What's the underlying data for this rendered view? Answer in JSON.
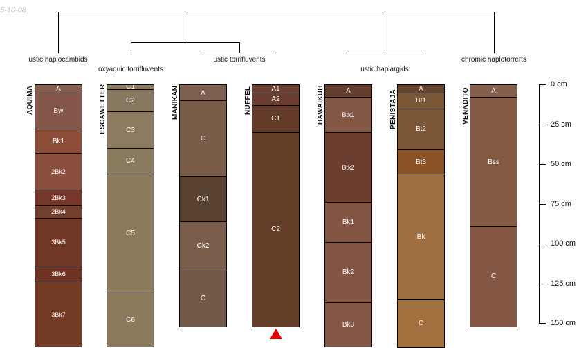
{
  "date_label": "5-10-08",
  "group_labels": [
    {
      "id": "g1",
      "text": "ustic haplocambids"
    },
    {
      "id": "g2",
      "text": "oxyaquic torrifluvents"
    },
    {
      "id": "g3",
      "text": "ustic torrifluvents"
    },
    {
      "id": "g4",
      "text": "ustic haplargids"
    },
    {
      "id": "g5",
      "text": "chromic haplotorrerts"
    }
  ],
  "depth_axis": {
    "unit": "cm",
    "max_depth": 150,
    "ticks": [
      "0 cm",
      "25 cm",
      "50 cm",
      "75 cm",
      "100 cm",
      "125 cm",
      "150 cm"
    ]
  },
  "profiles": [
    {
      "name": "AQUIMA",
      "horizons": [
        {
          "name": "A",
          "top": 0,
          "bottom": 5,
          "color": "#865c4e"
        },
        {
          "name": "Bw",
          "top": 5,
          "bottom": 28,
          "color": "#85574b"
        },
        {
          "name": "Bk1",
          "top": 28,
          "bottom": 43,
          "color": "#8f4e3a"
        },
        {
          "name": "2Bk2",
          "top": 43,
          "bottom": 66,
          "color": "#8b4f3e"
        },
        {
          "name": "2Bk3",
          "top": 66,
          "bottom": 76,
          "color": "#76372a"
        },
        {
          "name": "2Bk4",
          "top": 76,
          "bottom": 84,
          "color": "#74402e"
        },
        {
          "name": "3Bk5",
          "top": 84,
          "bottom": 114,
          "color": "#703626"
        },
        {
          "name": "3Bk6",
          "top": 114,
          "bottom": 124,
          "color": "#6d3423"
        },
        {
          "name": "3Bk7",
          "top": 124,
          "bottom": 165,
          "color": "#743b24"
        }
      ]
    },
    {
      "name": "ESCAWETTER",
      "horizons": [
        {
          "name": "C1",
          "top": 0,
          "bottom": 3,
          "color": "#8b7a62"
        },
        {
          "name": "C2",
          "top": 3,
          "bottom": 17,
          "color": "#88785f"
        },
        {
          "name": "C3",
          "top": 17,
          "bottom": 40,
          "color": "#8c7a61"
        },
        {
          "name": "C4",
          "top": 40,
          "bottom": 56,
          "color": "#8a7a5e"
        },
        {
          "name": "C5",
          "top": 56,
          "bottom": 131,
          "color": "#8b7b5b"
        },
        {
          "name": "C6",
          "top": 131,
          "bottom": 165,
          "color": "#8c7a5c"
        }
      ]
    },
    {
      "name": "MANIKAN",
      "horizons": [
        {
          "name": "A",
          "top": 0,
          "bottom": 10,
          "color": "#7d5f4f"
        },
        {
          "name": "C",
          "top": 10,
          "bottom": 58,
          "color": "#7a5d49"
        },
        {
          "name": "Ck1",
          "top": 58,
          "bottom": 86,
          "color": "#5a4230"
        },
        {
          "name": "Ck2",
          "top": 86,
          "bottom": 117,
          "color": "#7a5d4a"
        },
        {
          "name": "C",
          "top": 117,
          "bottom": 152,
          "color": "#725948"
        }
      ]
    },
    {
      "name": "NUFFEL",
      "horizons": [
        {
          "name": "A1",
          "top": 0,
          "bottom": 5,
          "color": "#6d4030"
        },
        {
          "name": "A2",
          "top": 5,
          "bottom": 13,
          "color": "#6a3d2e"
        },
        {
          "name": "C1",
          "top": 13,
          "bottom": 30,
          "color": "#643a29"
        },
        {
          "name": "C2",
          "top": 30,
          "bottom": 152,
          "color": "#633d28"
        }
      ]
    },
    {
      "name": "HAWAIKUH",
      "horizons": [
        {
          "name": "A",
          "top": 0,
          "bottom": 8,
          "color": "#633e2c"
        },
        {
          "name": "Btk1",
          "top": 8,
          "bottom": 30,
          "color": "#845846"
        },
        {
          "name": "Btk2",
          "top": 30,
          "bottom": 74,
          "color": "#6b3d2e"
        },
        {
          "name": "Bk1",
          "top": 74,
          "bottom": 99,
          "color": "#835545"
        },
        {
          "name": "Bk2",
          "top": 99,
          "bottom": 137,
          "color": "#835545"
        },
        {
          "name": "Bk3",
          "top": 137,
          "bottom": 165,
          "color": "#845645"
        }
      ]
    },
    {
      "name": "PENISTAJA",
      "horizons": [
        {
          "name": "A",
          "top": 0,
          "bottom": 5,
          "color": "#65432d"
        },
        {
          "name": "Bt1",
          "top": 5,
          "bottom": 15,
          "color": "#7a5634"
        },
        {
          "name": "Bt2",
          "top": 15,
          "bottom": 41,
          "color": "#7c5737"
        },
        {
          "name": "Bt3",
          "top": 41,
          "bottom": 56,
          "color": "#8b5426"
        },
        {
          "name": "Bk",
          "top": 56,
          "bottom": 135,
          "color": "#a06f3f"
        },
        {
          "name": "C",
          "top": 135,
          "bottom": 165,
          "color": "#a1703e"
        }
      ]
    },
    {
      "name": "VENADITO",
      "horizons": [
        {
          "name": "A",
          "top": 0,
          "bottom": 8,
          "color": "#855d4b"
        },
        {
          "name": "Bss",
          "top": 8,
          "bottom": 89,
          "color": "#835a44"
        },
        {
          "name": "C",
          "top": 89,
          "bottom": 152,
          "color": "#835744"
        }
      ]
    }
  ],
  "colors": {
    "horizon_text": "#ffffff",
    "marker": "#e00000",
    "line": "#000000"
  }
}
